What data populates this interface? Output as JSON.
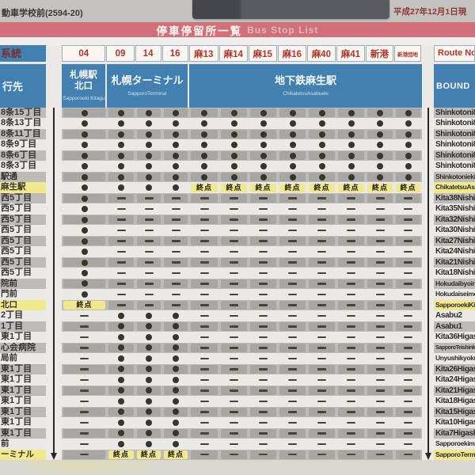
{
  "photo": {
    "stop_id": "動車学校前(2594-20)",
    "date": "平成27年12月1日現",
    "title_jp": "停車停留所一覧",
    "title_en": "Bus Stop List"
  },
  "header": {
    "route_label": "系統",
    "bound_label": "行先",
    "route_en_label": "Route No.",
    "bound_en_label": "BOUND",
    "routes": [
      {
        "no": "04"
      },
      {
        "no": "09"
      },
      {
        "no": "14"
      },
      {
        "no": "16"
      },
      {
        "no": "麻13"
      },
      {
        "no": "麻14"
      },
      {
        "no": "麻15"
      },
      {
        "no": "麻16"
      },
      {
        "no": "麻40"
      },
      {
        "no": "麻41"
      },
      {
        "no": "新港"
      },
      {
        "no": "新港団地",
        "small": true
      }
    ],
    "destinations": [
      {
        "jp": "札幌駅\n北口",
        "en": "Sapporoeki Kitaguchi",
        "span_cols": 1
      },
      {
        "jp": "札幌ターミナル",
        "en": "SapporoTerminal",
        "span_cols": 3
      },
      {
        "jp": "地下鉄麻生駅",
        "en": "ChikatetsuAsabueki",
        "span_cols": 8
      }
    ]
  },
  "legend": {
    "terminus": "終点",
    "stops_mark": "●",
    "no_service_mark": "—"
  },
  "table": {
    "rows": [
      {
        "jp": "8条15丁目",
        "en": "Shinkotoni8Jo15",
        "cells": "DDDDDDDDDDDD"
      },
      {
        "jp": "8条13丁目",
        "en": "Shinkotoni8Jo13",
        "cells": "DDDDDDDDDDDD"
      },
      {
        "jp": "8条11丁目",
        "en": "Shinkotoni8Jo11",
        "cells": "DDDDDDDDDDDD"
      },
      {
        "jp": "8条9丁目",
        "en": "Shinkotoni8Jo9",
        "cells": "DDDDDDDDDDDD"
      },
      {
        "jp": "8条6丁目",
        "en": "Shinkotoni8Jo6",
        "cells": "DDDDDDDDDDDD"
      },
      {
        "jp": "8条3丁目",
        "en": "Shinkotoni8Jo3",
        "cells": "DDDDDDDDDDDD"
      },
      {
        "jp": "駅通",
        "en": "Shinkotoniekidori",
        "cells": "DDDDDDDDDDDD",
        "sz": "s"
      },
      {
        "jp": "麻生駅",
        "en": "ChikatetsuAsabueki",
        "cells": "DDDDTTTTTTTT",
        "hl": true,
        "sz": "s"
      },
      {
        "jp": "西5丁目",
        "en": "Kita38Nishi5",
        "cells": "D-----------"
      },
      {
        "jp": "西5丁目",
        "en": "Kita35Nishi5",
        "cells": "D-----------"
      },
      {
        "jp": "西5丁目",
        "en": "Kita32Nishi5",
        "cells": "D-----------"
      },
      {
        "jp": "西5丁目",
        "en": "Kita30Nishi5",
        "cells": "D-----------"
      },
      {
        "jp": "西5丁目",
        "en": "Kita27Nishi5",
        "cells": "D-----------"
      },
      {
        "jp": "西5丁目",
        "en": "Kita24Nishi5",
        "cells": "D-----------"
      },
      {
        "jp": "西5丁目",
        "en": "Kita21Nishi5",
        "cells": "D-----------"
      },
      {
        "jp": "西5丁目",
        "en": "Kita18Nishi5",
        "cells": "D-----------"
      },
      {
        "jp": "院前",
        "en": "Hokudaibyoinmae",
        "cells": "D-----------",
        "sz": "s"
      },
      {
        "jp": "門前",
        "en": "Hokudaiseimonmae",
        "cells": "D-----------",
        "sz": "s"
      },
      {
        "jp": "北口",
        "en": "SapporoekiKitaguchi",
        "cells": "T-----------",
        "hl": true,
        "sz": "s"
      },
      {
        "jp": "2丁目",
        "en": "Asabu2",
        "cells": "-DDD--------"
      },
      {
        "jp": "1丁目",
        "en": "Asabu1",
        "cells": "-DDD--------"
      },
      {
        "jp": "東1丁目",
        "en": "Kita36Higashi1",
        "cells": "-DDD--------"
      },
      {
        "jp": "心会病院",
        "en": "SapporoTeishinkaiHospital",
        "cells": "-DDD--------",
        "sz": "t"
      },
      {
        "jp": "局前",
        "en": "Unyushikyokumae",
        "cells": "-DDD--------",
        "sz": "s"
      },
      {
        "jp": "東1丁目",
        "en": "Kita26Higashi1",
        "cells": "-DDD--------"
      },
      {
        "jp": "東1丁目",
        "en": "Kita24Higashi1",
        "cells": "-DDD--------"
      },
      {
        "jp": "東1丁目",
        "en": "Kita21Higashi1",
        "cells": "-DDD--------"
      },
      {
        "jp": "東1丁目",
        "en": "Kita18Higashi1",
        "cells": "-DDD--------"
      },
      {
        "jp": "東1丁目",
        "en": "Kita15Higashi1",
        "cells": "-DDD--------"
      },
      {
        "jp": "東1丁目",
        "en": "Kita10Higashi1",
        "cells": "-DDD--------"
      },
      {
        "jp": "東1丁目",
        "en": "Kita7Higashi1",
        "cells": "-DDD--------"
      },
      {
        "jp": "前",
        "en": "Sapporoekimae",
        "cells": "-DDD--------",
        "sz": "s"
      },
      {
        "jp": "ーミナル",
        "en": "SapporoTerminal",
        "cells": "-TTT--------",
        "hl": true,
        "sz": "s"
      }
    ]
  },
  "colors": {
    "banner_red": "#d1707a",
    "header_blue": "#4280b1",
    "route_number_red": "#b0342c",
    "highlight_yellow": "#efe88c",
    "row_gray": "#bcbbb7",
    "row_light": "#eae9e5",
    "dot_dark": "#38342e"
  }
}
